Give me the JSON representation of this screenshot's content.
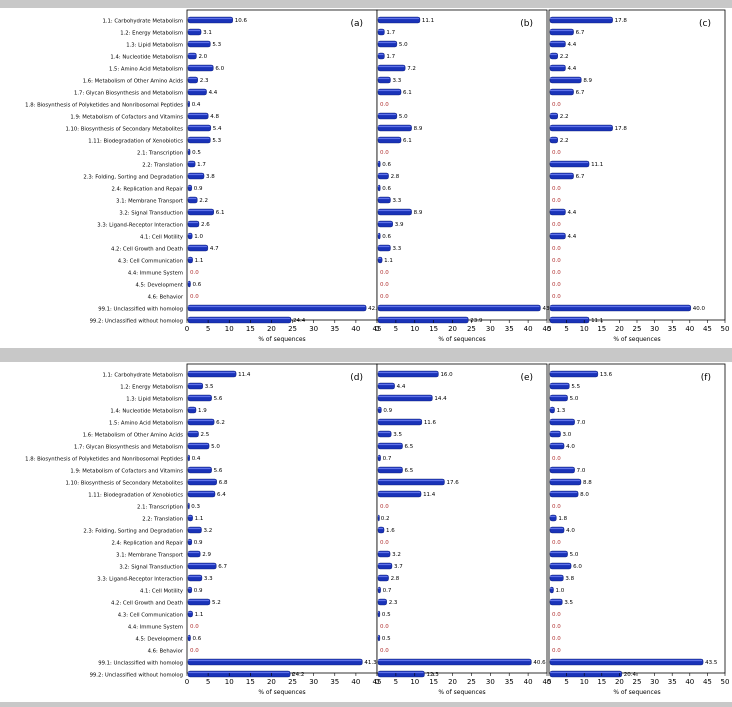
{
  "categories": [
    "1.1: Carbohydrate Metabolism",
    "1.2: Energy Metabolism",
    "1.3: Lipid Metabolism",
    "1.4: Nucleotide Metabolism",
    "1.5: Amino Acid Metabolism",
    "1.6: Metabolism of Other Amino Acids",
    "1.7: Glycan Biosynthesis and Metabolism",
    "1.8: Biosynthesis of Polyketides and Nonribosomal Peptides",
    "1.9: Metabolism of Cofactors and Vitamins",
    "1.10: Biosynthesis of Secondary Metabolites",
    "1.11: Biodegradation of Xenobiotics",
    "2.1: Transcription",
    "2.2: Translation",
    "2.3: Folding, Sorting and Degradation",
    "2.4: Replication and Repair",
    "3.1: Membrane Transport",
    "3.2: Signal Transduction",
    "3.3: Ligand-Receptor Interaction",
    "4.1: Cell Motility",
    "4.2: Cell Growth and Death",
    "4.3: Cell Communication",
    "4.4: Immune System",
    "4.5: Development",
    "4.6: Behavior",
    "99.1: Unclassified with homolog",
    "99.2: Unclassified without homolog"
  ],
  "colors": {
    "bar": "#1a33b8",
    "zero_label": "#b03030",
    "label": "#000000"
  },
  "chart_data": [
    {
      "type": "bar",
      "panel": "(a)",
      "xlabel": "% of sequences",
      "xlim": [
        0,
        45
      ],
      "values": [
        10.6,
        3.1,
        5.3,
        2.0,
        6.0,
        2.3,
        4.4,
        0.4,
        4.8,
        5.4,
        5.3,
        0.5,
        1.7,
        3.8,
        0.9,
        2.2,
        6.1,
        2.6,
        1.0,
        4.7,
        1.1,
        0.0,
        0.6,
        0.0,
        42.2,
        24.4
      ]
    },
    {
      "type": "bar",
      "panel": "(b)",
      "xlabel": "% of sequences",
      "xlim": [
        0,
        45
      ],
      "values": [
        11.1,
        1.7,
        5.0,
        1.7,
        7.2,
        3.3,
        6.1,
        0.0,
        5.0,
        8.9,
        6.1,
        0.0,
        0.6,
        2.8,
        0.6,
        3.3,
        8.9,
        3.9,
        0.6,
        3.3,
        1.1,
        0.0,
        0.0,
        0.0,
        43,
        23.9
      ]
    },
    {
      "type": "bar",
      "panel": "(c)",
      "xlabel": "% of sequences",
      "xlim": [
        0,
        50
      ],
      "values": [
        17.8,
        6.7,
        4.4,
        2.2,
        4.4,
        8.9,
        6.7,
        0.0,
        2.2,
        17.8,
        2.2,
        0.0,
        11.1,
        6.7,
        0.0,
        0.0,
        4.4,
        0.0,
        4.4,
        0.0,
        0.0,
        0.0,
        0.0,
        0.0,
        40.0,
        11.1
      ]
    },
    {
      "type": "bar",
      "panel": "(d)",
      "xlabel": "% of sequences",
      "xlim": [
        0,
        45
      ],
      "values": [
        11.4,
        3.5,
        5.6,
        1.9,
        6.2,
        2.5,
        5.0,
        0.4,
        5.6,
        6.8,
        6.4,
        0.3,
        1.1,
        3.2,
        0.9,
        2.9,
        6.7,
        3.3,
        0.9,
        5.2,
        1.1,
        0.0,
        0.6,
        0.0,
        41.3,
        24.2
      ]
    },
    {
      "type": "bar",
      "panel": "(e)",
      "xlabel": "% of sequences",
      "xlim": [
        0,
        45
      ],
      "values": [
        16.0,
        4.4,
        14.4,
        0.9,
        11.6,
        3.5,
        6.5,
        0.7,
        6.5,
        17.6,
        11.4,
        0.0,
        0.2,
        1.6,
        0.0,
        3.2,
        3.7,
        2.8,
        0.7,
        2.3,
        0.5,
        0.0,
        0.5,
        0.0,
        40.6,
        12.3
      ]
    },
    {
      "type": "bar",
      "panel": "(f)",
      "xlabel": "% of sequences",
      "xlim": [
        0,
        50
      ],
      "values": [
        13.6,
        5.5,
        5.0,
        1.3,
        7.0,
        3.0,
        4.0,
        0.0,
        7.0,
        8.8,
        8.0,
        0.0,
        1.8,
        4.0,
        0.0,
        5.0,
        6.0,
        3.8,
        1.0,
        3.5,
        0.0,
        0.0,
        0.0,
        0.0,
        43.5,
        20.4
      ]
    }
  ]
}
